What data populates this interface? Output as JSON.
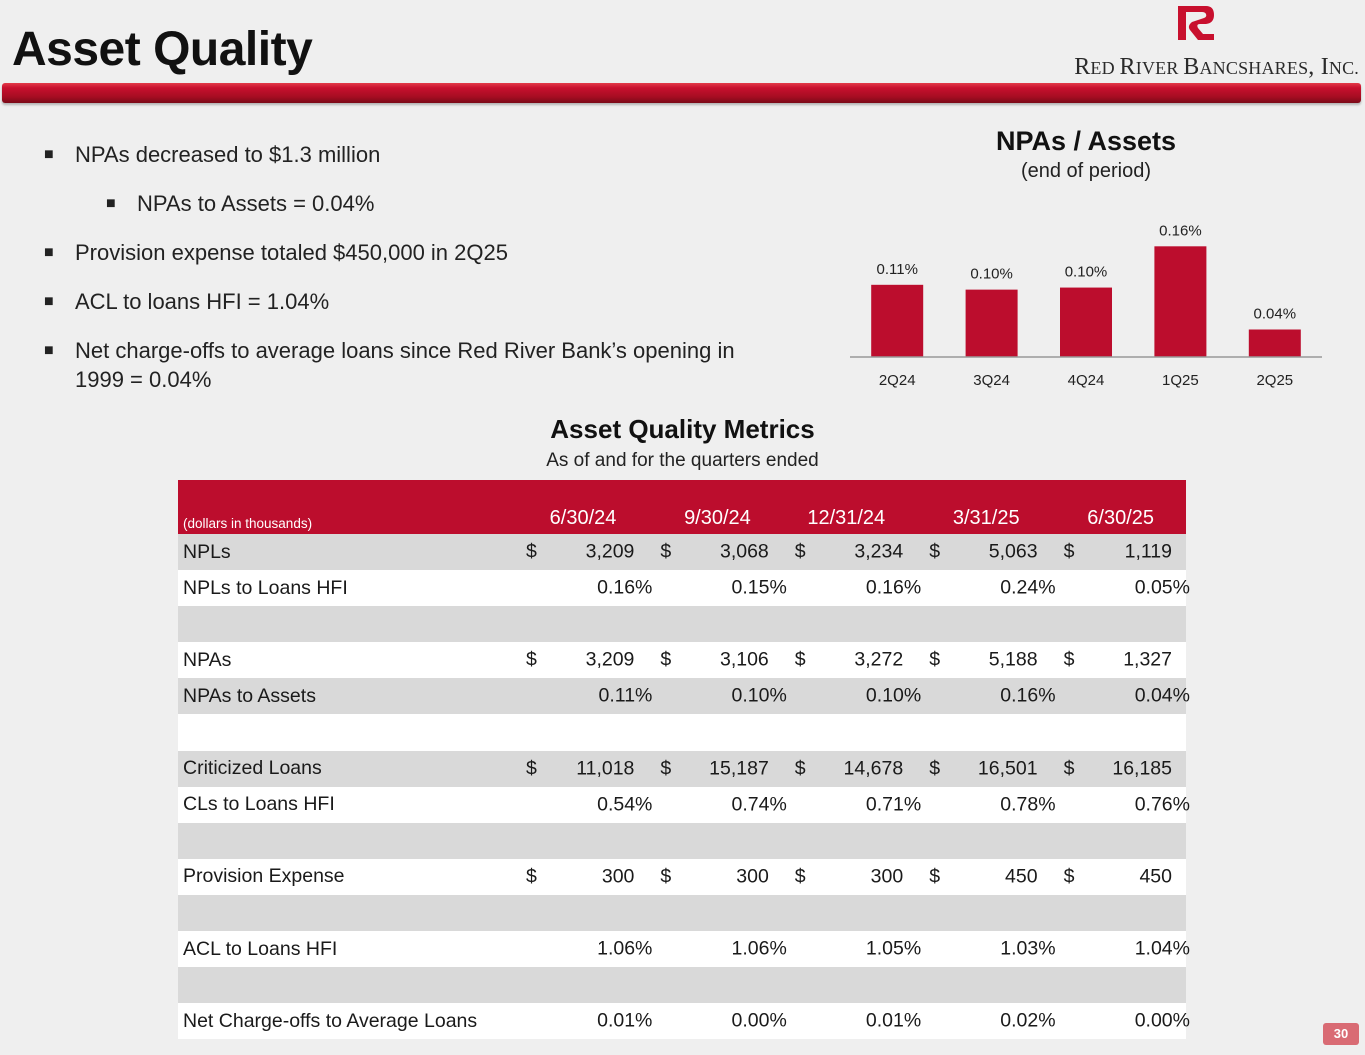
{
  "header": {
    "title": "Asset Quality",
    "company_big_1": "R",
    "company_small_1": "ED ",
    "company_big_2": "R",
    "company_small_2": "IVER ",
    "company_big_3": "B",
    "company_small_3": "ANCSHARES",
    "company_tail": ", I",
    "company_small_4": "NC."
  },
  "bullets": [
    "NPAs decreased to $1.3 million",
    "NPAs to Assets = 0.04%",
    "Provision expense totaled $450,000 in 2Q25",
    "ACL to loans HFI = 1.04%",
    "Net charge-offs to average loans since Red River Bank’s opening in 1999 = 0.04%"
  ],
  "bullet_marker": "■",
  "colors": {
    "brand_red": "#bc0d2d",
    "bar_red": "#bc0d2d"
  },
  "chart_data": {
    "type": "bar",
    "title": "NPAs / Assets",
    "subtitle": "(end of period)",
    "categories": [
      "2Q24",
      "3Q24",
      "4Q24",
      "1Q25",
      "2Q25"
    ],
    "values": [
      0.11,
      0.1,
      0.1,
      0.16,
      0.04
    ],
    "bar_heights": [
      0.105,
      0.098,
      0.101,
      0.161,
      0.04
    ],
    "labels": [
      "0.11%",
      "0.10%",
      "0.10%",
      "0.16%",
      "0.04%"
    ],
    "xlabel": "",
    "ylabel": "",
    "ylim": [
      0,
      0.16
    ],
    "grid": false,
    "legend": "none"
  },
  "table": {
    "title": "Asset Quality Metrics",
    "subtitle": "As of and for the quarters ended",
    "units_label": "(dollars in thousands)",
    "columns": [
      "6/30/24",
      "9/30/24",
      "12/31/24",
      "3/31/25",
      "6/30/25"
    ],
    "currency_symbol": "$",
    "rows": [
      {
        "label": "NPLs",
        "type": "dollar",
        "values": [
          "3,209",
          "3,068",
          "3,234",
          "5,063",
          "1,119"
        ]
      },
      {
        "label": "NPLs to Loans HFI",
        "type": "pct",
        "values": [
          "0.16%",
          "0.15%",
          "0.16%",
          "0.24%",
          "0.05%"
        ]
      },
      {
        "label": "",
        "type": "blank",
        "values": []
      },
      {
        "label": "NPAs",
        "type": "dollar",
        "values": [
          "3,209",
          "3,106",
          "3,272",
          "5,188",
          "1,327"
        ]
      },
      {
        "label": "NPAs to Assets",
        "type": "pct",
        "values": [
          "0.11%",
          "0.10%",
          "0.10%",
          "0.16%",
          "0.04%"
        ]
      },
      {
        "label": "",
        "type": "blank",
        "values": []
      },
      {
        "label": "Criticized Loans",
        "type": "dollar",
        "values": [
          "11,018",
          "15,187",
          "14,678",
          "16,501",
          "16,185"
        ]
      },
      {
        "label": "CLs to Loans HFI",
        "type": "pct",
        "values": [
          "0.54%",
          "0.74%",
          "0.71%",
          "0.78%",
          "0.76%"
        ]
      },
      {
        "label": "",
        "type": "blank",
        "values": []
      },
      {
        "label": "Provision Expense",
        "type": "dollar",
        "values": [
          "300",
          "300",
          "300",
          "450",
          "450"
        ]
      },
      {
        "label": "",
        "type": "blank",
        "values": []
      },
      {
        "label": "ACL to Loans HFI",
        "type": "pct",
        "values": [
          "1.06%",
          "1.06%",
          "1.05%",
          "1.03%",
          "1.04%"
        ]
      },
      {
        "label": "",
        "type": "blank",
        "values": []
      },
      {
        "label": "Net Charge-offs to Average Loans",
        "type": "pct",
        "values": [
          "0.01%",
          "0.00%",
          "0.01%",
          "0.02%",
          "0.00%"
        ]
      }
    ]
  },
  "page_number": "30"
}
